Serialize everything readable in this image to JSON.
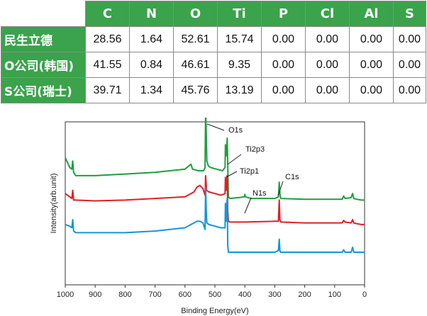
{
  "table": {
    "headers": [
      "",
      "C",
      "N",
      "O",
      "Ti",
      "P",
      "Cl",
      "Al",
      "S"
    ],
    "rows": [
      {
        "label": "民生立德",
        "values": [
          "28.56",
          "1.64",
          "52.61",
          "15.74",
          "0.00",
          "0.00",
          "0.00",
          "0.00"
        ]
      },
      {
        "label": "O公司(韩国)",
        "values": [
          "41.55",
          "0.84",
          "46.61",
          "9.35",
          "0.00",
          "0.00",
          "0.00",
          "0.00"
        ]
      },
      {
        "label": "S公司(瑞士)",
        "values": [
          "39.71",
          "1.34",
          "45.76",
          "13.19",
          "0.00",
          "0.00",
          "0.00",
          "0.00"
        ]
      }
    ]
  },
  "colors": {
    "green": "#1e9e3e",
    "red": "#e01f26",
    "blue": "#1296d6",
    "header_green": "#3aa34b"
  },
  "chart_data": {
    "type": "line",
    "xlabel": "Binding Energy(eV)",
    "ylabel": "Intensity(arb.unit)",
    "xlim": [
      1000,
      0
    ],
    "x_reversed": true,
    "xticks": [
      1000,
      900,
      800,
      700,
      600,
      500,
      400,
      300,
      200,
      100,
      0
    ],
    "yticks": [],
    "annotations": [
      {
        "text": "O1s",
        "x": 530
      },
      {
        "text": "Ti2p3",
        "x": 459
      },
      {
        "text": "Ti2p1",
        "x": 465
      },
      {
        "text": "N1s",
        "x": 400
      },
      {
        "text": "C1s",
        "x": 285
      }
    ],
    "series": [
      {
        "color": "#1e9e3e",
        "points": [
          [
            1000,
            0.78
          ],
          [
            985,
            0.72
          ],
          [
            978,
            0.71
          ],
          [
            975,
            0.76
          ],
          [
            972,
            0.69
          ],
          [
            965,
            0.67
          ],
          [
            900,
            0.67
          ],
          [
            800,
            0.68
          ],
          [
            700,
            0.69
          ],
          [
            600,
            0.71
          ],
          [
            580,
            0.74
          ],
          [
            575,
            0.71
          ],
          [
            555,
            0.7
          ],
          [
            545,
            0.7
          ],
          [
            538,
            0.7
          ],
          [
            533,
            0.72
          ],
          [
            531,
            1.08
          ],
          [
            529,
            0.93
          ],
          [
            527,
            0.76
          ],
          [
            522,
            0.73
          ],
          [
            515,
            0.72
          ],
          [
            495,
            0.71
          ],
          [
            475,
            0.7
          ],
          [
            466,
            0.72
          ],
          [
            465,
            0.86
          ],
          [
            463,
            0.79
          ],
          [
            461,
            0.81
          ],
          [
            459,
            0.9
          ],
          [
            457,
            0.73
          ],
          [
            455,
            0.54
          ],
          [
            450,
            0.53
          ],
          [
            420,
            0.535
          ],
          [
            402,
            0.54
          ],
          [
            400,
            0.555
          ],
          [
            398,
            0.54
          ],
          [
            380,
            0.53
          ],
          [
            300,
            0.53
          ],
          [
            288,
            0.54
          ],
          [
            285,
            0.63
          ],
          [
            283,
            0.56
          ],
          [
            280,
            0.53
          ],
          [
            200,
            0.525
          ],
          [
            100,
            0.525
          ],
          [
            75,
            0.525
          ],
          [
            70,
            0.545
          ],
          [
            65,
            0.53
          ],
          [
            45,
            0.535
          ],
          [
            40,
            0.56
          ],
          [
            36,
            0.53
          ],
          [
            25,
            0.525
          ],
          [
            10,
            0.52
          ],
          [
            0,
            0.52
          ]
        ]
      },
      {
        "color": "#e01f26",
        "points": [
          [
            1000,
            0.56
          ],
          [
            985,
            0.54
          ],
          [
            978,
            0.53
          ],
          [
            975,
            0.58
          ],
          [
            972,
            0.52
          ],
          [
            965,
            0.52
          ],
          [
            900,
            0.515
          ],
          [
            800,
            0.52
          ],
          [
            700,
            0.53
          ],
          [
            600,
            0.54
          ],
          [
            580,
            0.56
          ],
          [
            570,
            0.57
          ],
          [
            560,
            0.6
          ],
          [
            550,
            0.61
          ],
          [
            540,
            0.59
          ],
          [
            533,
            0.55
          ],
          [
            531,
            0.67
          ],
          [
            528,
            0.58
          ],
          [
            520,
            0.57
          ],
          [
            500,
            0.56
          ],
          [
            480,
            0.55
          ],
          [
            466,
            0.56
          ],
          [
            465,
            0.66
          ],
          [
            463,
            0.58
          ],
          [
            459,
            0.67
          ],
          [
            457,
            0.45
          ],
          [
            455,
            0.39
          ],
          [
            450,
            0.385
          ],
          [
            400,
            0.385
          ],
          [
            300,
            0.39
          ],
          [
            288,
            0.39
          ],
          [
            285,
            0.52
          ],
          [
            283,
            0.4
          ],
          [
            280,
            0.385
          ],
          [
            200,
            0.38
          ],
          [
            100,
            0.38
          ],
          [
            75,
            0.38
          ],
          [
            70,
            0.395
          ],
          [
            65,
            0.385
          ],
          [
            45,
            0.38
          ],
          [
            40,
            0.4
          ],
          [
            36,
            0.38
          ],
          [
            25,
            0.375
          ],
          [
            10,
            0.37
          ],
          [
            0,
            0.37
          ]
        ]
      },
      {
        "color": "#1296d6",
        "points": [
          [
            1000,
            0.37
          ],
          [
            985,
            0.36
          ],
          [
            978,
            0.35
          ],
          [
            975,
            0.4
          ],
          [
            972,
            0.33
          ],
          [
            965,
            0.32
          ],
          [
            900,
            0.32
          ],
          [
            800,
            0.32
          ],
          [
            700,
            0.33
          ],
          [
            600,
            0.35
          ],
          [
            580,
            0.37
          ],
          [
            570,
            0.38
          ],
          [
            560,
            0.39
          ],
          [
            550,
            0.39
          ],
          [
            540,
            0.38
          ],
          [
            533,
            0.34
          ],
          [
            531,
            0.6
          ],
          [
            529,
            0.46
          ],
          [
            527,
            0.38
          ],
          [
            520,
            0.37
          ],
          [
            500,
            0.36
          ],
          [
            480,
            0.35
          ],
          [
            466,
            0.35
          ],
          [
            465,
            0.5
          ],
          [
            463,
            0.39
          ],
          [
            459,
            0.53
          ],
          [
            457,
            0.24
          ],
          [
            455,
            0.2
          ],
          [
            450,
            0.2
          ],
          [
            400,
            0.2
          ],
          [
            300,
            0.2
          ],
          [
            288,
            0.21
          ],
          [
            285,
            0.28
          ],
          [
            283,
            0.21
          ],
          [
            280,
            0.2
          ],
          [
            200,
            0.2
          ],
          [
            100,
            0.2
          ],
          [
            75,
            0.2
          ],
          [
            70,
            0.215
          ],
          [
            65,
            0.2
          ],
          [
            45,
            0.2
          ],
          [
            40,
            0.23
          ],
          [
            36,
            0.2
          ],
          [
            25,
            0.2
          ],
          [
            10,
            0.2
          ],
          [
            0,
            0.2
          ]
        ]
      }
    ]
  }
}
